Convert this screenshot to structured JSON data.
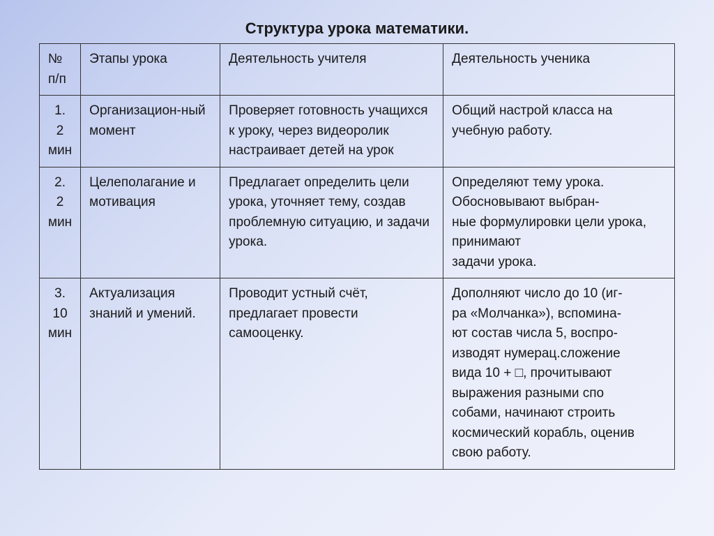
{
  "title": "Структура урока математики.",
  "table": {
    "columns": [
      "№ п/п",
      "Этапы урока",
      "Деятельность учителя",
      "Деятельность ученика"
    ],
    "rows": [
      {
        "num_top": "1.",
        "num_mid": "2",
        "num_bot": "мин",
        "stage": "Организацион-ный момент",
        "teacher": "Проверяет готовность учащихся к уроку, через видеоролик настраивает детей на урок",
        "student": "Общий настрой класса на учебную работу."
      },
      {
        "num_top": "2.",
        "num_mid": "2",
        "num_bot": "мин",
        "stage": "Целеполагание и мотивация",
        "teacher": "Предлагает определить цели урока, уточняет тему, создав проблемную ситуацию, и задачи\nурока.",
        "student": "Определяют тему урока. Обосновывают выбран-\nные формулировки цели урока, принимают\nзадачи урока."
      },
      {
        "num_top": "3.",
        "num_mid": "10",
        "num_bot": "мин",
        "stage": "Актуализация знаний и умений.",
        "teacher": "Проводит устный счёт, предлагает провести самооценку.",
        "student": "Дополняют число до 10 (иг-\nра «Молчанка»), вспомина-\nют состав числа 5, воспро-\nизводят нумерац.сложение\nвида 10 + □, прочитывают\nвыражения разными спо\nсобами, начинают строить\nкосмический корабль, оценив свою работу."
      }
    ]
  }
}
